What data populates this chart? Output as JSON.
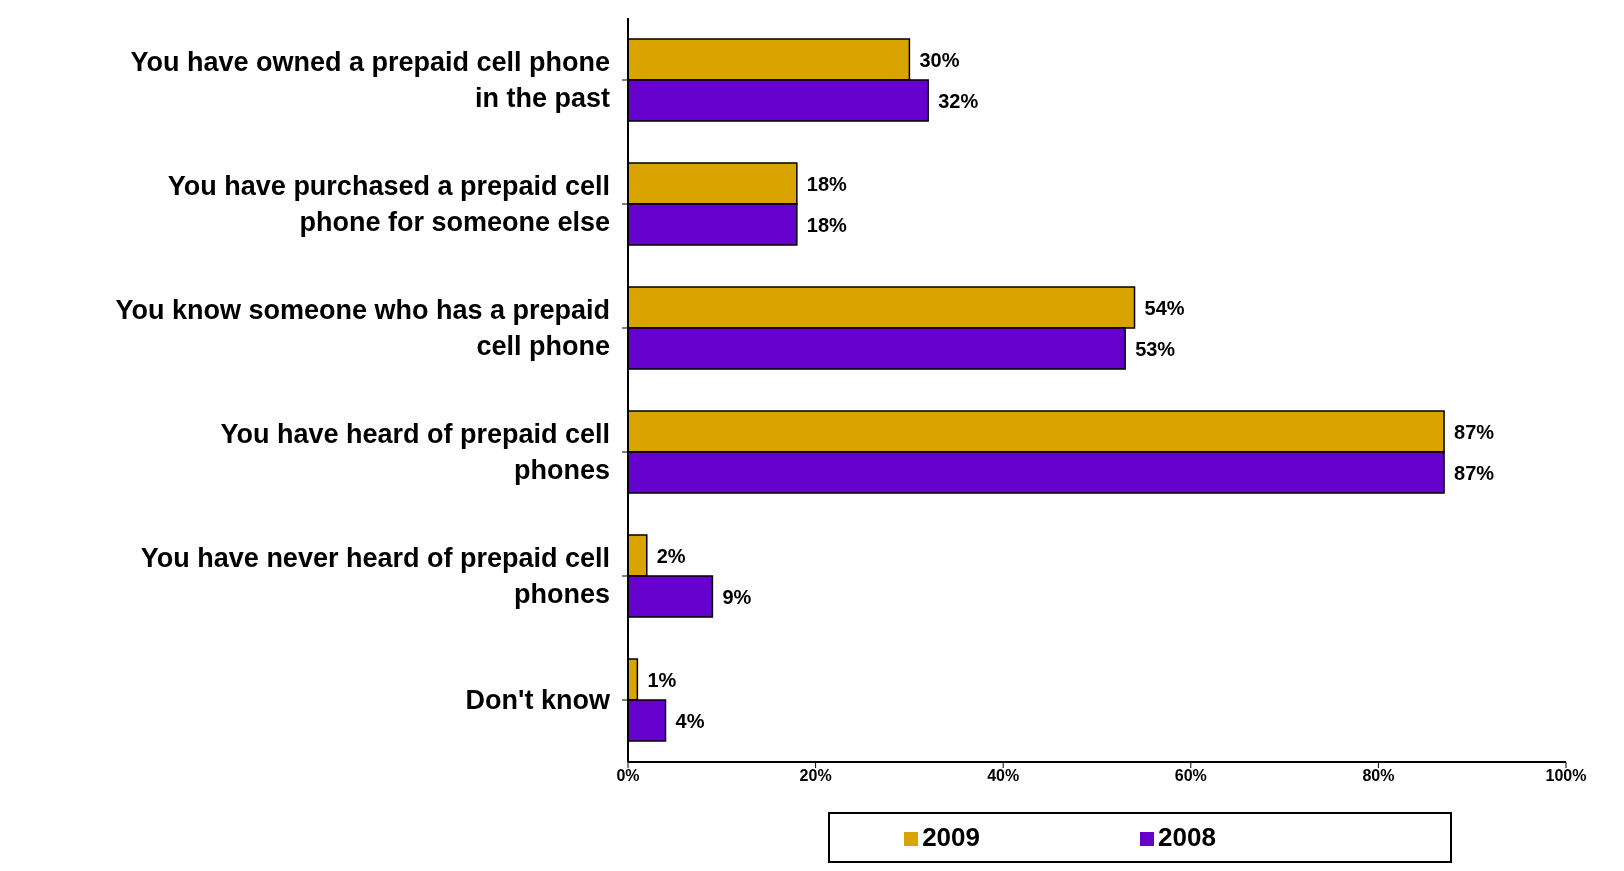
{
  "chart_data": {
    "type": "bar",
    "orientation": "horizontal",
    "categories": [
      "You have owned a prepaid cell phone in the past",
      "You have purchased a prepaid cell phone for someone else",
      "You know someone who has a prepaid cell phone",
      "You have heard of prepaid cell phones",
      "You have never heard of prepaid cell phones",
      "Don't know"
    ],
    "series": [
      {
        "name": "2009",
        "color": "#d9a300",
        "values": [
          30,
          18,
          54,
          87,
          2,
          1
        ],
        "value_labels": [
          "30%",
          "18%",
          "54%",
          "87%",
          "2%",
          "1%"
        ]
      },
      {
        "name": "2008",
        "color": "#6600cc",
        "values": [
          32,
          18,
          53,
          87,
          9,
          4
        ],
        "value_labels": [
          "32%",
          "18%",
          "53%",
          "87%",
          "9%",
          "4%"
        ]
      }
    ],
    "xlim": [
      0,
      100
    ],
    "xticks": [
      {
        "value": 0,
        "label": "0%"
      },
      {
        "value": 20,
        "label": "20%"
      },
      {
        "value": 40,
        "label": "40%"
      },
      {
        "value": 60,
        "label": "60%"
      },
      {
        "value": 80,
        "label": "80%"
      },
      {
        "value": 100,
        "label": "100%"
      }
    ],
    "grid": false,
    "legend": "bottom"
  }
}
